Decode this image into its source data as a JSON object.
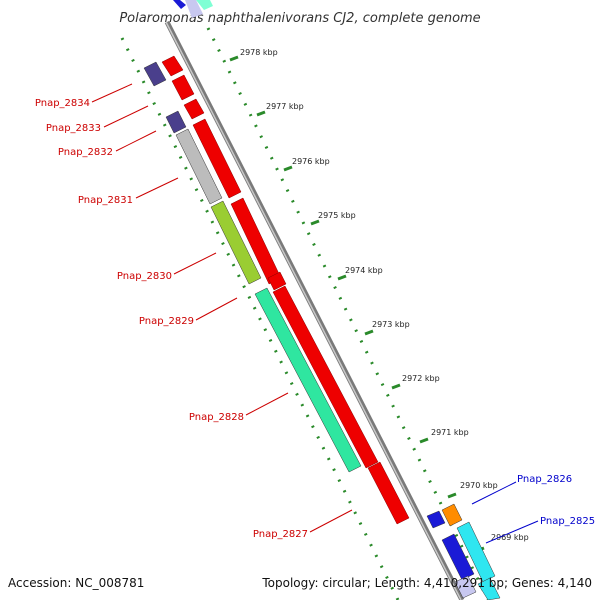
{
  "title": "Polaromonas naphthalenivorans CJ2, complete genome",
  "footer": {
    "accession": "Accession: NC_008781",
    "stats": "Topology: circular; Length: 4,410,291 bp; Genes: 4,140"
  },
  "colors": {
    "forward_label": "#cc0000",
    "reverse_label": "#0000cc",
    "backbone": "#888888",
    "tick": "#2a8a2a"
  },
  "scale_labels": [
    "2978 kbp",
    "2977 kbp",
    "2976 kbp",
    "2975 kbp",
    "2974 kbp",
    "2973 kbp",
    "2972 kbp",
    "2971 kbp",
    "2970 kbp",
    "2969 kbp"
  ],
  "gene_labels": [
    "Pnap_2834",
    "Pnap_2833",
    "Pnap_2832",
    "Pnap_2831",
    "Pnap_2830",
    "Pnap_2829",
    "Pnap_2828",
    "Pnap_2827",
    "Pnap_2826",
    "Pnap_2825"
  ]
}
